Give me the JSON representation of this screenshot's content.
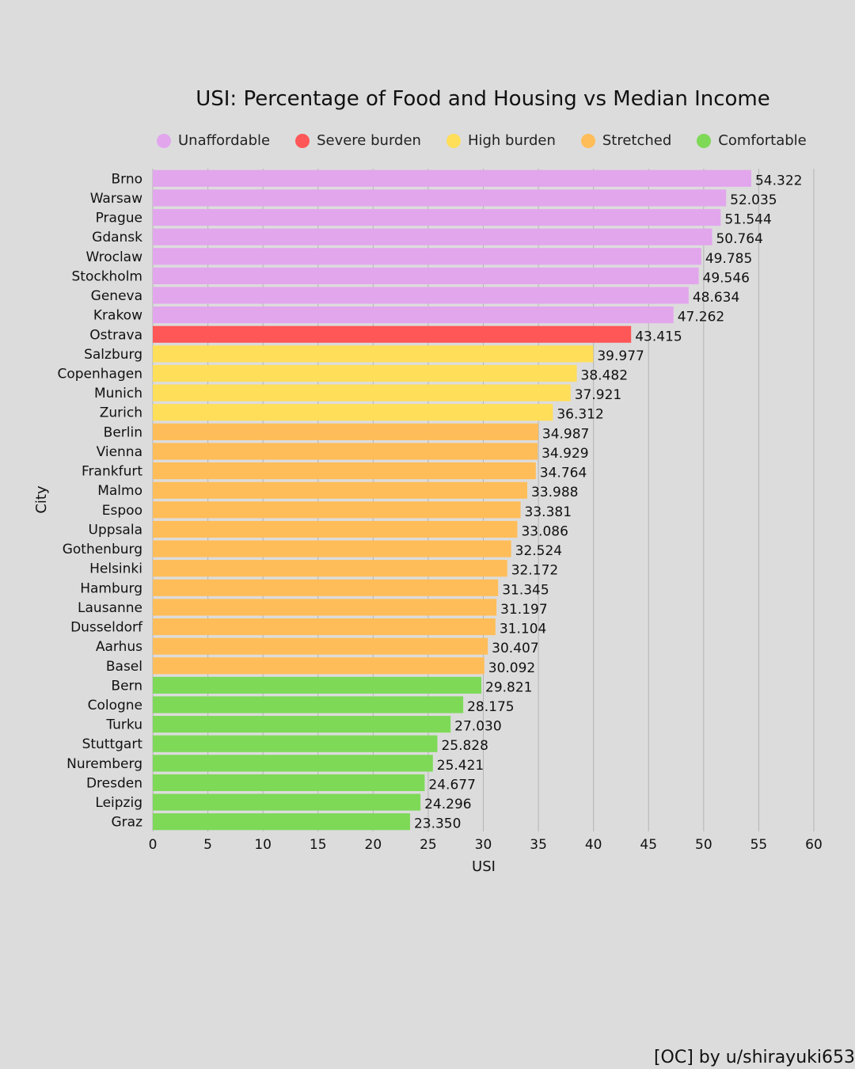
{
  "chart_data": {
    "type": "bar",
    "orientation": "horizontal",
    "title": "USI: Percentage of Food and Housing vs Median Income",
    "xlabel": "USI",
    "ylabel": "City",
    "xlim": [
      0,
      60
    ],
    "xticks": [
      0,
      5,
      10,
      15,
      20,
      25,
      30,
      35,
      40,
      45,
      50,
      55,
      60
    ],
    "grid": "vertical",
    "legend_position": "top",
    "legend": [
      {
        "label": "Unaffordable",
        "color": "#e2a6ed"
      },
      {
        "label": "Severe burden",
        "color": "#ff5757"
      },
      {
        "label": "High burden",
        "color": "#ffde59"
      },
      {
        "label": "Stretched",
        "color": "#ffbd59"
      },
      {
        "label": "Comfortable",
        "color": "#7ed957"
      }
    ],
    "categories": [
      "Brno",
      "Warsaw",
      "Prague",
      "Gdansk",
      "Wroclaw",
      "Stockholm",
      "Geneva",
      "Krakow",
      "Ostrava",
      "Salzburg",
      "Copenhagen",
      "Munich",
      "Zurich",
      "Berlin",
      "Vienna",
      "Frankfurt",
      "Malmo",
      "Espoo",
      "Uppsala",
      "Gothenburg",
      "Helsinki",
      "Hamburg",
      "Lausanne",
      "Dusseldorf",
      "Aarhus",
      "Basel",
      "Bern",
      "Cologne",
      "Turku",
      "Stuttgart",
      "Nuremberg",
      "Dresden",
      "Leipzig",
      "Graz"
    ],
    "values": [
      54.322,
      52.035,
      51.544,
      50.764,
      49.785,
      49.546,
      48.634,
      47.262,
      43.415,
      39.977,
      38.482,
      37.921,
      36.312,
      34.987,
      34.929,
      34.764,
      33.988,
      33.381,
      33.086,
      32.524,
      32.172,
      31.345,
      31.197,
      31.104,
      30.407,
      30.092,
      29.821,
      28.175,
      27.03,
      25.828,
      25.421,
      24.677,
      24.296,
      23.35
    ],
    "value_labels": [
      "54.322",
      "52.035",
      "51.544",
      "50.764",
      "49.785",
      "49.546",
      "48.634",
      "47.262",
      "43.415",
      "39.977",
      "38.482",
      "37.921",
      "36.312",
      "34.987",
      "34.929",
      "34.764",
      "33.988",
      "33.381",
      "33.086",
      "32.524",
      "32.172",
      "31.345",
      "31.197",
      "31.104",
      "30.407",
      "30.092",
      "29.821",
      "28.175",
      "27.030",
      "25.828",
      "25.421",
      "24.677",
      "24.296",
      "23.350"
    ],
    "groups": [
      0,
      0,
      0,
      0,
      0,
      0,
      0,
      0,
      1,
      2,
      2,
      2,
      2,
      3,
      3,
      3,
      3,
      3,
      3,
      3,
      3,
      3,
      3,
      3,
      3,
      3,
      4,
      4,
      4,
      4,
      4,
      4,
      4,
      4
    ]
  },
  "credit": "[OC] by u/shirayuki653",
  "colors": {
    "background": "#dcdcdc",
    "grid": "#b4b4b4",
    "text": "#111111"
  }
}
